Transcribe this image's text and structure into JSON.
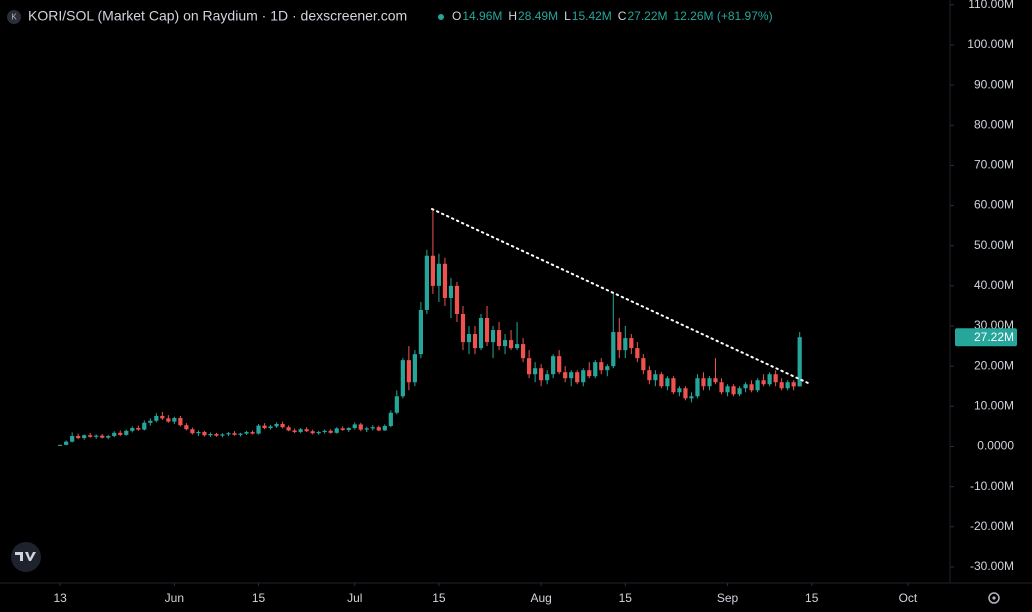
{
  "header": {
    "icon": "K",
    "symbol": "KORI/SOL (Market Cap) on Raydium · 1D · dexscreener.com",
    "ohlc": [
      {
        "key": "O",
        "value": "14.96M"
      },
      {
        "key": "H",
        "value": "28.49M"
      },
      {
        "key": "L",
        "value": "15.42M"
      },
      {
        "key": "C",
        "value": "27.22M"
      }
    ],
    "change": "12.26M (+81.97%)"
  },
  "chart_data": {
    "type": "candlestick",
    "up_color": "#26a69a",
    "down_color": "#ef5350",
    "grid": false,
    "x": [
      "05-13",
      "05-14",
      "05-15",
      "05-16",
      "05-17",
      "05-18",
      "05-19",
      "05-20",
      "05-21",
      "05-22",
      "05-23",
      "05-24",
      "05-25",
      "05-26",
      "05-27",
      "05-28",
      "05-29",
      "05-30",
      "05-31",
      "06-01",
      "06-02",
      "06-03",
      "06-04",
      "06-05",
      "06-06",
      "06-07",
      "06-08",
      "06-09",
      "06-10",
      "06-11",
      "06-12",
      "06-13",
      "06-14",
      "06-15",
      "06-16",
      "06-17",
      "06-18",
      "06-19",
      "06-20",
      "06-21",
      "06-22",
      "06-23",
      "06-24",
      "06-25",
      "06-26",
      "06-27",
      "06-28",
      "06-29",
      "06-30",
      "07-01",
      "07-02",
      "07-03",
      "07-04",
      "07-05",
      "07-06",
      "07-07",
      "07-08",
      "07-09",
      "07-10",
      "07-11",
      "07-12",
      "07-13",
      "07-14",
      "07-15",
      "07-16",
      "07-17",
      "07-18",
      "07-19",
      "07-20",
      "07-21",
      "07-22",
      "07-23",
      "07-24",
      "07-25",
      "07-26",
      "07-27",
      "07-28",
      "07-29",
      "07-30",
      "07-31",
      "08-01",
      "08-02",
      "08-03",
      "08-04",
      "08-05",
      "08-06",
      "08-07",
      "08-08",
      "08-09",
      "08-10",
      "08-11",
      "08-12",
      "08-13",
      "08-14",
      "08-15",
      "08-16",
      "08-17",
      "08-18",
      "08-19",
      "08-20",
      "08-21",
      "08-22",
      "08-23",
      "08-24",
      "08-25",
      "08-26",
      "08-27",
      "08-28",
      "08-29",
      "08-30",
      "08-31",
      "09-01",
      "09-02",
      "09-03",
      "09-04",
      "09-05",
      "09-06",
      "09-07",
      "09-08",
      "09-09",
      "09-10",
      "09-11",
      "09-12",
      "09-13"
    ],
    "candles": [
      [
        0.3,
        0.5,
        0.2,
        0.4
      ],
      [
        0.4,
        1.5,
        0.3,
        1.2
      ],
      [
        1.2,
        3.5,
        1.0,
        2.6
      ],
      [
        2.6,
        3.2,
        1.8,
        2.1
      ],
      [
        2.1,
        3.0,
        1.7,
        2.8
      ],
      [
        2.8,
        3.4,
        2.2,
        2.4
      ],
      [
        2.4,
        3.0,
        1.9,
        2.7
      ],
      [
        2.7,
        3.1,
        2.0,
        2.2
      ],
      [
        2.2,
        2.9,
        1.8,
        2.6
      ],
      [
        2.6,
        3.8,
        2.3,
        3.4
      ],
      [
        3.4,
        4.0,
        2.6,
        2.9
      ],
      [
        2.9,
        4.2,
        2.7,
        3.9
      ],
      [
        3.9,
        5.0,
        3.5,
        4.6
      ],
      [
        4.6,
        5.2,
        3.9,
        4.2
      ],
      [
        4.2,
        6.5,
        4.0,
        5.9
      ],
      [
        5.9,
        7.0,
        5.2,
        6.4
      ],
      [
        6.4,
        8.3,
        6.0,
        7.6
      ],
      [
        7.6,
        8.6,
        6.6,
        7.0
      ],
      [
        7.0,
        7.8,
        5.9,
        6.2
      ],
      [
        6.2,
        7.4,
        5.6,
        7.1
      ],
      [
        7.1,
        7.6,
        5.0,
        5.3
      ],
      [
        5.3,
        5.8,
        4.0,
        4.3
      ],
      [
        4.3,
        4.7,
        3.0,
        3.3
      ],
      [
        3.3,
        4.0,
        2.6,
        3.6
      ],
      [
        3.6,
        3.9,
        2.5,
        2.8
      ],
      [
        2.8,
        3.5,
        2.4,
        3.1
      ],
      [
        3.1,
        3.4,
        2.4,
        2.7
      ],
      [
        2.7,
        3.3,
        2.3,
        3.0
      ],
      [
        3.0,
        3.6,
        2.6,
        3.3
      ],
      [
        3.3,
        3.8,
        2.7,
        2.9
      ],
      [
        2.9,
        3.4,
        2.5,
        3.2
      ],
      [
        3.2,
        3.9,
        2.9,
        3.6
      ],
      [
        3.6,
        4.0,
        3.0,
        3.2
      ],
      [
        3.2,
        5.6,
        3.0,
        5.2
      ],
      [
        5.2,
        5.8,
        4.3,
        4.6
      ],
      [
        4.6,
        5.4,
        4.2,
        5.0
      ],
      [
        5.0,
        6.0,
        4.6,
        5.6
      ],
      [
        5.6,
        6.2,
        4.5,
        4.8
      ],
      [
        4.8,
        5.2,
        3.8,
        4.0
      ],
      [
        4.0,
        4.5,
        3.3,
        3.6
      ],
      [
        3.6,
        4.6,
        3.3,
        4.3
      ],
      [
        4.3,
        4.8,
        3.6,
        3.8
      ],
      [
        3.8,
        4.2,
        3.0,
        3.3
      ],
      [
        3.3,
        3.9,
        2.9,
        3.6
      ],
      [
        3.6,
        4.2,
        3.2,
        3.9
      ],
      [
        3.9,
        4.3,
        3.2,
        3.4
      ],
      [
        3.4,
        4.8,
        3.2,
        4.5
      ],
      [
        4.5,
        5.0,
        3.9,
        4.1
      ],
      [
        4.1,
        4.8,
        3.6,
        4.6
      ],
      [
        4.6,
        6.0,
        4.2,
        5.5
      ],
      [
        5.5,
        5.9,
        3.8,
        4.2
      ],
      [
        4.2,
        4.9,
        3.6,
        4.5
      ],
      [
        4.5,
        5.3,
        4.0,
        4.8
      ],
      [
        4.8,
        5.2,
        3.8,
        4.0
      ],
      [
        4.0,
        5.5,
        3.9,
        5.1
      ],
      [
        5.1,
        9.0,
        4.8,
        8.4
      ],
      [
        8.4,
        14.0,
        8.0,
        12.5
      ],
      [
        12.5,
        22.0,
        12.0,
        21.5
      ],
      [
        21.5,
        25.0,
        14.0,
        16.0
      ],
      [
        16.0,
        24.0,
        15.0,
        23.0
      ],
      [
        23.0,
        36.0,
        22.0,
        34.0
      ],
      [
        34.0,
        49.0,
        33.0,
        47.5
      ],
      [
        47.5,
        59.0,
        38.0,
        40.0
      ],
      [
        40.0,
        48.0,
        36.0,
        45.5
      ],
      [
        45.5,
        47.0,
        35.0,
        37.0
      ],
      [
        37.0,
        42.0,
        32.0,
        40.0
      ],
      [
        40.0,
        41.0,
        31.0,
        33.0
      ],
      [
        33.0,
        35.0,
        24.0,
        26.0
      ],
      [
        26.0,
        30.0,
        23.0,
        28.0
      ],
      [
        28.0,
        30.0,
        23.0,
        24.5
      ],
      [
        24.5,
        33.0,
        24.0,
        32.0
      ],
      [
        32.0,
        35.0,
        25.0,
        26.0
      ],
      [
        26.0,
        30.0,
        22.0,
        29.0
      ],
      [
        29.0,
        31.0,
        24.0,
        25.0
      ],
      [
        25.0,
        28.0,
        23.0,
        26.5
      ],
      [
        26.5,
        29.0,
        24.0,
        24.5
      ],
      [
        24.5,
        31.0,
        24.0,
        25.5
      ],
      [
        25.5,
        27.0,
        21.0,
        22.0
      ],
      [
        22.0,
        24.0,
        17.0,
        18.0
      ],
      [
        18.0,
        21.0,
        16.0,
        19.5
      ],
      [
        19.5,
        20.5,
        15.0,
        16.5
      ],
      [
        16.5,
        19.0,
        15.5,
        18.0
      ],
      [
        18.0,
        23.0,
        17.0,
        22.5
      ],
      [
        22.5,
        24.0,
        18.0,
        18.5
      ],
      [
        18.5,
        20.0,
        16.0,
        17.0
      ],
      [
        17.0,
        19.0,
        15.0,
        18.5
      ],
      [
        18.5,
        19.0,
        15.5,
        16.0
      ],
      [
        16.0,
        19.5,
        15.0,
        19.0
      ],
      [
        19.0,
        21.0,
        17.0,
        17.5
      ],
      [
        17.5,
        21.5,
        17.0,
        21.0
      ],
      [
        21.0,
        22.0,
        18.0,
        19.0
      ],
      [
        19.0,
        20.5,
        17.5,
        20.0
      ],
      [
        20.0,
        38.0,
        19.5,
        28.5
      ],
      [
        28.5,
        32.0,
        22.0,
        24.0
      ],
      [
        24.0,
        30.0,
        22.0,
        27.0
      ],
      [
        27.0,
        28.0,
        23.0,
        24.5
      ],
      [
        24.5,
        26.0,
        21.0,
        22.0
      ],
      [
        22.0,
        23.0,
        18.0,
        19.0
      ],
      [
        19.0,
        20.0,
        15.5,
        16.5
      ],
      [
        16.5,
        19.0,
        15.0,
        18.0
      ],
      [
        18.0,
        18.5,
        14.5,
        15.0
      ],
      [
        15.0,
        17.5,
        14.0,
        17.0
      ],
      [
        17.0,
        17.5,
        13.0,
        13.5
      ],
      [
        13.5,
        15.0,
        12.5,
        14.5
      ],
      [
        14.5,
        15.0,
        11.5,
        12.0
      ],
      [
        12.0,
        13.5,
        11.0,
        12.5
      ],
      [
        12.5,
        18.0,
        12.0,
        17.0
      ],
      [
        17.0,
        18.5,
        14.0,
        15.0
      ],
      [
        15.0,
        17.5,
        14.0,
        17.0
      ],
      [
        17.0,
        22.0,
        15.5,
        16.0
      ],
      [
        16.0,
        17.0,
        13.0,
        13.5
      ],
      [
        13.5,
        15.5,
        12.5,
        15.0
      ],
      [
        15.0,
        15.5,
        12.5,
        13.0
      ],
      [
        13.0,
        15.0,
        12.5,
        14.5
      ],
      [
        14.5,
        16.0,
        13.5,
        15.5
      ],
      [
        15.5,
        16.5,
        13.5,
        14.0
      ],
      [
        14.0,
        17.0,
        13.5,
        16.5
      ],
      [
        16.5,
        18.0,
        15.0,
        15.5
      ],
      [
        15.5,
        18.5,
        15.0,
        18.0
      ],
      [
        18.0,
        19.0,
        15.0,
        16.0
      ],
      [
        16.0,
        17.0,
        14.0,
        14.5
      ],
      [
        14.5,
        16.5,
        14.0,
        16.0
      ],
      [
        16.0,
        16.5,
        14.0,
        14.96
      ],
      [
        14.96,
        28.49,
        15.42,
        27.22
      ]
    ],
    "last_label": "27.22M",
    "xlim": [
      "05-03",
      "10-08"
    ],
    "xticks": [
      {
        "value": "05-13",
        "label": "13"
      },
      {
        "value": "06-01",
        "label": "Jun"
      },
      {
        "value": "06-15",
        "label": "15"
      },
      {
        "value": "07-01",
        "label": "Jul"
      },
      {
        "value": "07-15",
        "label": "15"
      },
      {
        "value": "08-01",
        "label": "Aug"
      },
      {
        "value": "08-15",
        "label": "15"
      },
      {
        "value": "09-01",
        "label": "Sep"
      },
      {
        "value": "09-15",
        "label": "15"
      },
      {
        "value": "10-01",
        "label": "Oct"
      }
    ],
    "ylim": [
      -34,
      111.2
    ],
    "yticks": [
      {
        "value": -30,
        "label": "-30.00M"
      },
      {
        "value": -20,
        "label": "-20.00M"
      },
      {
        "value": -10,
        "label": "-10.00M"
      },
      {
        "value": 0,
        "label": "0.0000"
      },
      {
        "value": 10,
        "label": "10.00M"
      },
      {
        "value": 20,
        "label": "20.00M"
      },
      {
        "value": 30,
        "label": "30.00M"
      },
      {
        "value": 40,
        "label": "40.00M"
      },
      {
        "value": 50,
        "label": "50.00M"
      },
      {
        "value": 60,
        "label": "60.00M"
      },
      {
        "value": 70,
        "label": "70.00M"
      },
      {
        "value": 80,
        "label": "80.00M"
      },
      {
        "value": 90,
        "label": "90.00M"
      },
      {
        "value": 100,
        "label": "100.00M"
      },
      {
        "value": 110,
        "label": "110.00M"
      }
    ]
  }
}
